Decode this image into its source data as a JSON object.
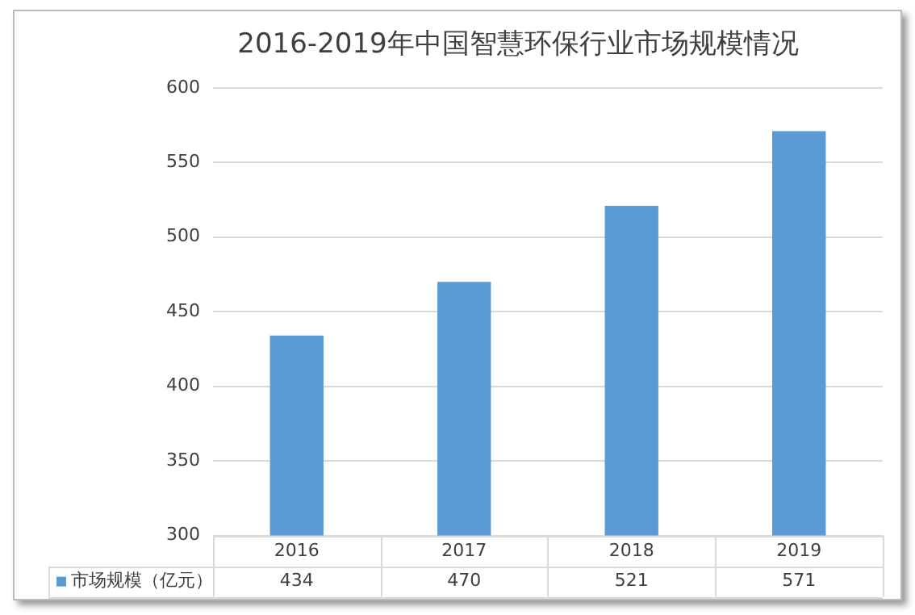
{
  "chart_data": {
    "type": "bar",
    "title": "2016-2019年中国智慧环保行业市场规模情况",
    "categories": [
      "2016",
      "2017",
      "2018",
      "2019"
    ],
    "series": [
      {
        "name": "市场规模（亿元）",
        "color": "#5b9bd5",
        "values": [
          434,
          470,
          521,
          571
        ]
      }
    ],
    "ylim": [
      300,
      600
    ],
    "yticks": [
      300,
      350,
      400,
      450,
      500,
      550,
      600
    ],
    "grid": "y",
    "legend": "bottom left",
    "data_labels": true
  }
}
